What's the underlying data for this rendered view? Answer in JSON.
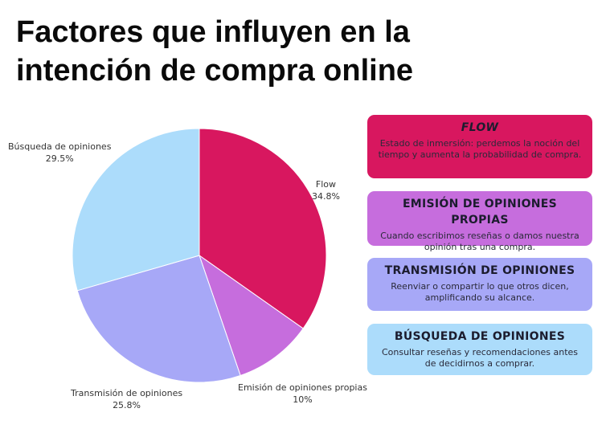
{
  "title_line1": "Factores que influyen en la",
  "title_line2": "intención de compra online",
  "chart_data": {
    "type": "pie",
    "title": "Factores que influyen en la intención de compra online",
    "slices": [
      {
        "name": "Flow",
        "value": 34.8,
        "label": "34.8%",
        "color": "#d8175f"
      },
      {
        "name": "Emisión de opiniones propias",
        "value": 10,
        "label": "10%",
        "color": "#c66ddd"
      },
      {
        "name": "Transmisión de opiniones",
        "value": 25.8,
        "label": "25.8%",
        "color": "#a7a8f7"
      },
      {
        "name": "Búsqueda de opiniones",
        "value": 29.5,
        "label": "29.5%",
        "color": "#acdcfb"
      }
    ],
    "start": "top",
    "direction": "clockwise"
  },
  "cards": [
    {
      "title": "FLOW",
      "desc": "Estado de inmersión: perdemos la noción del tiempo y aumenta la probabilidad de compra.",
      "color": "#d8175f"
    },
    {
      "title": "EMISIÓN DE OPINIONES PROPIAS",
      "desc": "Cuando escribimos reseñas o damos nuestra opinión tras una compra.",
      "color": "#c66ddd"
    },
    {
      "title": "TRANSMISIÓN DE OPINIONES",
      "desc": "Reenviar o compartir lo que otros dicen, amplificando su alcance.",
      "color": "#a7a8f7"
    },
    {
      "title": "BÚSQUEDA DE OPINIONES",
      "desc": "Consultar reseñas y recomendaciones antes de decidirnos a comprar.",
      "color": "#acdcfb"
    }
  ]
}
